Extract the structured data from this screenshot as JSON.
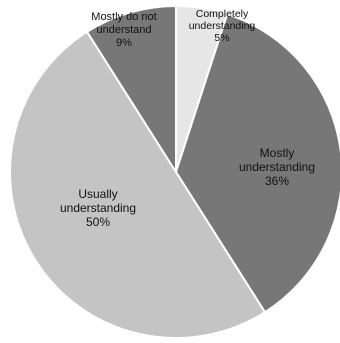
{
  "chart_data": {
    "type": "pie",
    "start_angle_deg": 0,
    "direction": "clockwise",
    "slices": [
      {
        "label_lines": [
          "Completely",
          "understanding",
          "5%"
        ],
        "value": 5,
        "color": "#e6e6e6"
      },
      {
        "label_lines": [
          "Mostly",
          "understanding",
          "36%"
        ],
        "value": 36,
        "color": "#777777"
      },
      {
        "label_lines": [
          "Usually",
          "understanding",
          "50%"
        ],
        "value": 50,
        "color": "#c4c4c4"
      },
      {
        "label_lines": [
          "Mostly do not",
          "understand",
          "9%"
        ],
        "value": 9,
        "color": "#777777"
      }
    ],
    "edge_color": "#ffffff",
    "legend": "none"
  }
}
